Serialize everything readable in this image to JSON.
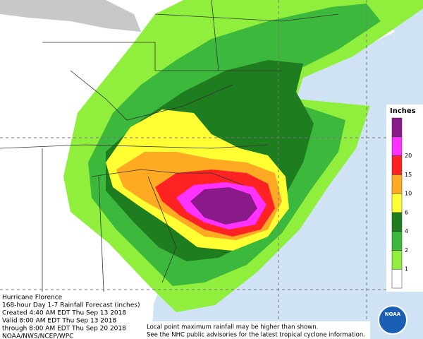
{
  "header": {
    "lines": [
      "Hurricane Florence",
      "168-hour Day 1-7 Rainfall Forecast (inches)",
      "Created 4:40 AM EDT Thu Sep 13 2018",
      "Valid 8:00 AM EDT Thu Sep 13 2018",
      "through 8:00 AM EDT Thu Sep 20 2018",
      "NOAA/NWS/NCEP/WPC"
    ]
  },
  "notes": [
    "Local point maximum rainfall may be higher than shown.",
    "See the NHC public advisories for the latest tropical cyclone information."
  ],
  "legend": {
    "title": "Inches",
    "colors": [
      "#ffffff",
      "#8fef3c",
      "#3cb83c",
      "#1e7d1e",
      "#ffff33",
      "#ffaa22",
      "#ff2222",
      "#ff33ff",
      "#8a1a8a"
    ],
    "labels": [
      "1",
      "2",
      "4",
      "6",
      "10",
      "15",
      "20"
    ]
  },
  "logo": "NOAA"
}
